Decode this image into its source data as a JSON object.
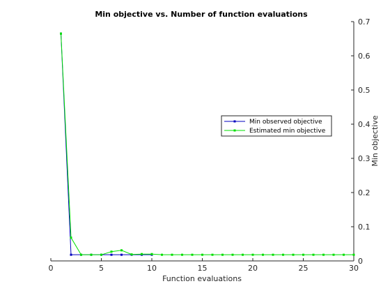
{
  "chart_data": {
    "type": "line",
    "title": "Min objective vs. Number of function evaluations",
    "xlabel": "Function evaluations",
    "ylabel": "Min objective",
    "xlim": [
      0,
      30
    ],
    "ylim": [
      0,
      0.7
    ],
    "xticks": [
      0,
      5,
      10,
      15,
      20,
      25,
      30
    ],
    "yticks": [
      0,
      0.1,
      0.2,
      0.3,
      0.4,
      0.5,
      0.6,
      0.7
    ],
    "ytick_labels": [
      "0",
      "0.1",
      "0.2",
      "0.3",
      "0.4",
      "0.5",
      "0.6",
      "0.7"
    ],
    "y_axis_side": "right",
    "grid": false,
    "legend_position": "right",
    "series": [
      {
        "name": "Min observed objective",
        "color": "#0000bf",
        "style": "line-with-point-markers",
        "x": [
          1,
          2,
          3,
          4,
          5,
          6,
          7,
          8,
          9,
          10
        ],
        "y": [
          0.665,
          0.018,
          0.018,
          0.018,
          0.018,
          0.018,
          0.018,
          0.018,
          0.018,
          0.018
        ]
      },
      {
        "name": "Estimated min objective",
        "color": "#00e000",
        "style": "line-with-point-markers",
        "x": [
          1,
          2,
          3,
          4,
          5,
          6,
          7,
          8,
          9,
          10,
          11,
          12,
          13,
          14,
          15,
          16,
          17,
          18,
          19,
          20,
          21,
          22,
          23,
          24,
          25,
          26,
          27,
          28,
          29,
          30
        ],
        "y": [
          0.665,
          0.068,
          0.018,
          0.018,
          0.018,
          0.027,
          0.031,
          0.019,
          0.02,
          0.02,
          0.018,
          0.018,
          0.018,
          0.018,
          0.018,
          0.018,
          0.018,
          0.018,
          0.018,
          0.018,
          0.018,
          0.018,
          0.018,
          0.018,
          0.018,
          0.018,
          0.018,
          0.018,
          0.018,
          0.018
        ]
      }
    ]
  }
}
